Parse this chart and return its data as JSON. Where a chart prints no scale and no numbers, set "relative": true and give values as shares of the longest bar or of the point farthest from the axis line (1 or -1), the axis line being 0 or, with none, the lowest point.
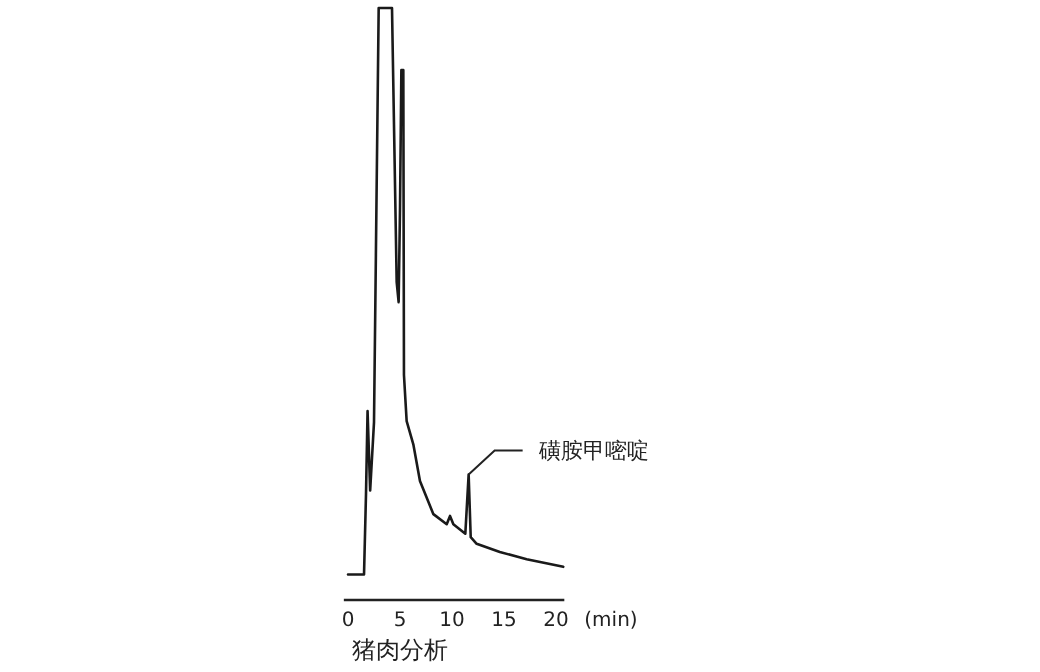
{
  "chart_data": {
    "type": "line",
    "relative": true,
    "title": "猪肉分析",
    "xlabel": "(min)",
    "xlim": [
      -0.4,
      20.8
    ],
    "xticks": [
      0,
      5,
      10,
      15,
      20
    ],
    "grid": false,
    "marker": "none",
    "line_style": "solid",
    "series": [
      {
        "color": "#1a1a1a",
        "x": [
          0,
          1.54,
          1.73,
          1.88,
          2.13,
          2.5,
          2.95,
          4.23,
          4.68,
          4.87,
          5.0,
          5.13,
          5.32,
          5.38,
          5.64,
          6.28,
          6.92,
          8.21,
          9.49,
          9.81,
          10.13,
          11.28,
          11.6,
          11.8,
          12.37,
          14.6,
          17.18,
          20.7
        ],
        "values": [
          0.043,
          0.043,
          0.179,
          0.319,
          0.185,
          0.3,
          1,
          1,
          0.537,
          0.503,
          0.66,
          0.895,
          0.895,
          0.38,
          0.302,
          0.263,
          0.201,
          0.145,
          0.128,
          0.142,
          0.128,
          0.112,
          0.212,
          0.106,
          0.095,
          0.081,
          0.069,
          0.056
        ]
      }
    ],
    "annotations": [
      {
        "text": "磺胺甲嘧啶",
        "x": 11.6,
        "y": 0.212
      }
    ]
  }
}
